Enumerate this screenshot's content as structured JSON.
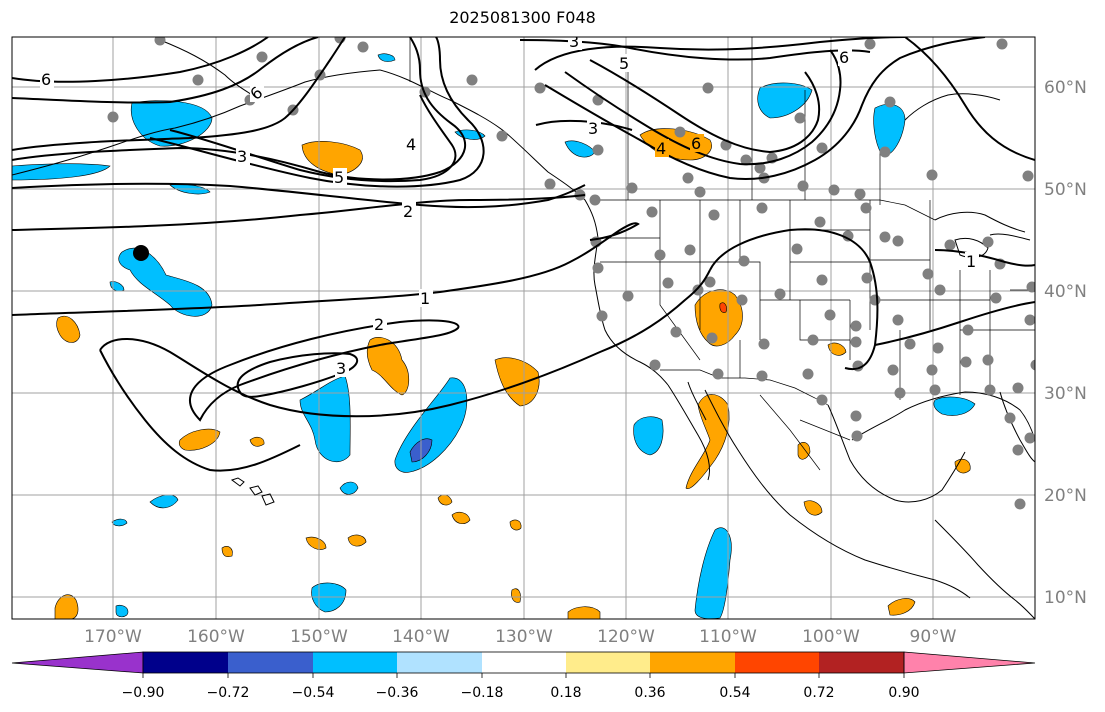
{
  "title": "2025081300 F048",
  "map": {
    "lon_labels": [
      "170°W",
      "160°W",
      "150°W",
      "140°W",
      "130°W",
      "120°W",
      "110°W",
      "100°W",
      "90°W"
    ],
    "lat_labels": [
      "60°N",
      "50°N",
      "40°N",
      "30°N",
      "20°N",
      "10°N"
    ],
    "contour_labels": [
      "6",
      "6",
      "3",
      "5",
      "4",
      "2",
      "1",
      "2",
      "3",
      "3",
      "5",
      "3",
      "6",
      "4",
      "6",
      "1"
    ],
    "colorbar": {
      "colors": [
        "#9932cc",
        "#00008b",
        "#3a5fcd",
        "#00bfff",
        "#b0e2ff",
        "#ffffff",
        "#ffec8b",
        "#ffa500",
        "#ff4500",
        "#b22222",
        "#ff82ab"
      ],
      "tick_labels": [
        "−0.90",
        "−0.72",
        "−0.54",
        "−0.36",
        "−0.18",
        "0.18",
        "0.36",
        "0.54",
        "0.72",
        "0.90"
      ]
    },
    "colors": {
      "blue_shading": "#00bfff",
      "orange_shading": "#ffa500",
      "red_shading": "#ff4500",
      "station_dot": "#808080",
      "grid": "#a0a0a0"
    }
  }
}
